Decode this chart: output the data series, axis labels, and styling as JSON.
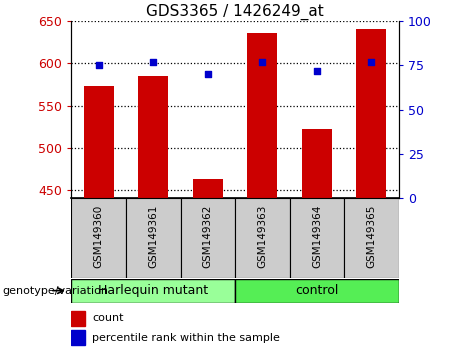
{
  "title": "GDS3365 / 1426249_at",
  "samples": [
    "GSM149360",
    "GSM149361",
    "GSM149362",
    "GSM149363",
    "GSM149364",
    "GSM149365"
  ],
  "counts": [
    573,
    585,
    463,
    636,
    522,
    641
  ],
  "percentile_ranks": [
    75,
    77,
    70,
    77,
    72,
    77
  ],
  "ylim_left": [
    440,
    650
  ],
  "ylim_right": [
    0,
    100
  ],
  "yticks_left": [
    450,
    500,
    550,
    600,
    650
  ],
  "yticks_right": [
    0,
    25,
    50,
    75,
    100
  ],
  "bar_color": "#cc0000",
  "dot_color": "#0000cc",
  "bar_bottom": 440,
  "groups": [
    {
      "label": "Harlequin mutant",
      "indices": [
        0,
        1,
        2
      ],
      "color": "#99ff99"
    },
    {
      "label": "control",
      "indices": [
        3,
        4,
        5
      ],
      "color": "#55ee55"
    }
  ],
  "group_label": "genotype/variation",
  "legend_count_label": "count",
  "legend_pct_label": "percentile rank within the sample",
  "tick_label_color_left": "#cc0000",
  "tick_label_color_right": "#0000cc",
  "sample_box_color": "#cccccc",
  "title_fontsize": 11,
  "axis_fontsize": 9,
  "sample_fontsize": 7.5,
  "group_fontsize": 9,
  "legend_fontsize": 8
}
